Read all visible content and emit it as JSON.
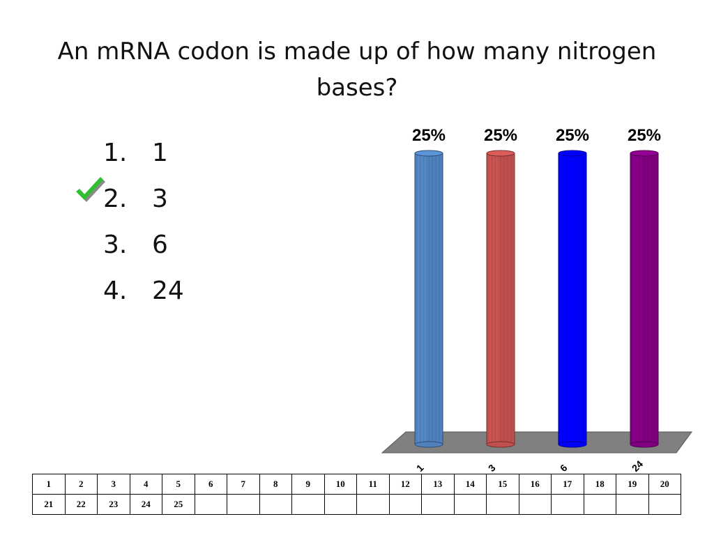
{
  "slide": {
    "title": "An mRNA codon is made up of how many nitrogen bases?",
    "answers": [
      {
        "number": "1.",
        "text": "1",
        "correct": false
      },
      {
        "number": "2.",
        "text": "3",
        "correct": true
      },
      {
        "number": "3.",
        "text": "6",
        "correct": false
      },
      {
        "number": "4.",
        "text": "24",
        "correct": false
      }
    ],
    "correct_icon": "checkmark-icon"
  },
  "chart_data": {
    "type": "bar",
    "categories": [
      "1",
      "3",
      "6",
      "24"
    ],
    "values": [
      25,
      25,
      25,
      25
    ],
    "data_labels": [
      "25%",
      "25%",
      "25%",
      "25%"
    ],
    "colors": [
      "#4f81bd",
      "#c0504d",
      "#0000ff",
      "#800080"
    ],
    "ylim": [
      0,
      25
    ],
    "title": "",
    "xlabel": "",
    "ylabel": "",
    "grid": false
  },
  "response_grid": {
    "rows": [
      [
        "1",
        "2",
        "3",
        "4",
        "5",
        "6",
        "7",
        "8",
        "9",
        "10",
        "11",
        "12",
        "13",
        "14",
        "15",
        "16",
        "17",
        "18",
        "19",
        "20"
      ],
      [
        "21",
        "22",
        "23",
        "24",
        "25",
        "",
        "",
        "",
        "",
        "",
        "",
        "",
        "",
        "",
        "",
        "",
        "",
        "",
        "",
        ""
      ]
    ]
  }
}
